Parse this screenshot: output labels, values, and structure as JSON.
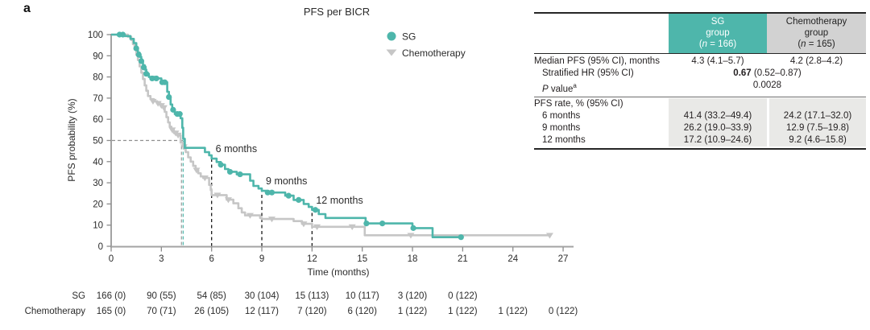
{
  "panel_label": "a",
  "chart_data": {
    "type": "line",
    "subtype": "kaplan-meier-step",
    "title": "PFS per BICR",
    "xlabel": "Time (months)",
    "ylabel": "PFS probability (%)",
    "xlim": [
      0,
      27
    ],
    "ylim": [
      0,
      100
    ],
    "xticks": [
      0,
      3,
      6,
      9,
      12,
      15,
      18,
      21,
      24,
      27
    ],
    "yticks": [
      0,
      10,
      20,
      30,
      40,
      50,
      60,
      70,
      80,
      90,
      100
    ],
    "grid": false,
    "legend_position": "upper right inside",
    "legend": [
      {
        "label": "SG",
        "marker": "circle",
        "color": "#4eb6ab"
      },
      {
        "label": "Chemotherapy",
        "marker": "triangle-down",
        "color": "#c6c6c6"
      }
    ],
    "medians_months": {
      "sg": 4.3,
      "chemotherapy": 4.2,
      "reference_probability_pct": 50
    },
    "dashed_timepoints": [
      {
        "label": "6 months",
        "month": 6,
        "top_pct": 41.4
      },
      {
        "label": "9 months",
        "month": 9,
        "top_pct": 26.2
      },
      {
        "label": "12 months",
        "month": 12,
        "top_pct": 17.2
      }
    ],
    "series": [
      {
        "name": "Chemotherapy",
        "color": "#c6c6c6",
        "marker": "triangle-down",
        "steps": [
          [
            0,
            100
          ],
          [
            1.0,
            99
          ],
          [
            1.2,
            97.5
          ],
          [
            1.3,
            95.5
          ],
          [
            1.4,
            93
          ],
          [
            1.5,
            90.5
          ],
          [
            1.6,
            88
          ],
          [
            1.7,
            85
          ],
          [
            1.8,
            82
          ],
          [
            1.9,
            79
          ],
          [
            2.0,
            76
          ],
          [
            2.1,
            73.5
          ],
          [
            2.2,
            71
          ],
          [
            2.35,
            69.5
          ],
          [
            2.55,
            68.5
          ],
          [
            2.75,
            67.5
          ],
          [
            2.95,
            66.5
          ],
          [
            3.1,
            65.5
          ],
          [
            3.2,
            63.5
          ],
          [
            3.3,
            61
          ],
          [
            3.4,
            58.5
          ],
          [
            3.5,
            56.5
          ],
          [
            3.6,
            55
          ],
          [
            3.75,
            53.5
          ],
          [
            3.95,
            52.5
          ],
          [
            4.15,
            49
          ],
          [
            4.3,
            47
          ],
          [
            4.45,
            44.5
          ],
          [
            4.6,
            42
          ],
          [
            4.75,
            40
          ],
          [
            4.9,
            38
          ],
          [
            5.05,
            36
          ],
          [
            5.2,
            34.5
          ],
          [
            5.35,
            33
          ],
          [
            5.5,
            32.3
          ],
          [
            5.85,
            29
          ],
          [
            5.95,
            26.5
          ],
          [
            6.0,
            24.2
          ],
          [
            6.9,
            22
          ],
          [
            7.3,
            20.3
          ],
          [
            7.6,
            18
          ],
          [
            7.8,
            16
          ],
          [
            8.0,
            14.6
          ],
          [
            8.9,
            13.4
          ],
          [
            9.0,
            12.9
          ],
          [
            10.9,
            11.9
          ],
          [
            11.4,
            10.6
          ],
          [
            12.0,
            9.2
          ],
          [
            15.15,
            5.2
          ],
          [
            26.2,
            5.2
          ]
        ],
        "censor_marks": [
          [
            2.5,
            68.5
          ],
          [
            2.8,
            67.5
          ],
          [
            3.0,
            66.5
          ],
          [
            3.15,
            65.5
          ],
          [
            3.65,
            55
          ],
          [
            3.85,
            53.5
          ],
          [
            4.0,
            52.5
          ],
          [
            4.35,
            47
          ],
          [
            5.1,
            36
          ],
          [
            5.6,
            32.3
          ],
          [
            6.35,
            24.2
          ],
          [
            7.0,
            22
          ],
          [
            8.3,
            14.6
          ],
          [
            9.6,
            12.9
          ],
          [
            11.5,
            10.6
          ],
          [
            12.3,
            9.2
          ],
          [
            14.4,
            9.2
          ],
          [
            17.9,
            5.2
          ],
          [
            26.2,
            5.2
          ]
        ]
      },
      {
        "name": "SG",
        "color": "#4eb6ab",
        "marker": "circle",
        "steps": [
          [
            0,
            100
          ],
          [
            0.8,
            99.3
          ],
          [
            1.15,
            98
          ],
          [
            1.35,
            96
          ],
          [
            1.5,
            93.5
          ],
          [
            1.6,
            91.5
          ],
          [
            1.7,
            89.5
          ],
          [
            1.8,
            87.5
          ],
          [
            1.9,
            85.5
          ],
          [
            2.0,
            83.5
          ],
          [
            2.1,
            81.5
          ],
          [
            2.25,
            80
          ],
          [
            2.6,
            79.3
          ],
          [
            3.0,
            77.5
          ],
          [
            3.35,
            73
          ],
          [
            3.45,
            70.5
          ],
          [
            3.55,
            67
          ],
          [
            3.65,
            64.5
          ],
          [
            3.8,
            62.5
          ],
          [
            4.15,
            60.5
          ],
          [
            4.25,
            56
          ],
          [
            4.3,
            50.8
          ],
          [
            4.4,
            46.5
          ],
          [
            5.6,
            44.5
          ],
          [
            5.85,
            43
          ],
          [
            6.0,
            41.4
          ],
          [
            6.3,
            39.8
          ],
          [
            6.55,
            38.5
          ],
          [
            6.8,
            36.5
          ],
          [
            7.0,
            35.2
          ],
          [
            7.5,
            34
          ],
          [
            8.3,
            31
          ],
          [
            8.5,
            28.5
          ],
          [
            8.8,
            27.3
          ],
          [
            9.0,
            26.2
          ],
          [
            9.3,
            25.4
          ],
          [
            10.4,
            23.9
          ],
          [
            10.9,
            21.9
          ],
          [
            11.5,
            20
          ],
          [
            11.8,
            18.6
          ],
          [
            12.0,
            17.2
          ],
          [
            12.4,
            15.2
          ],
          [
            12.8,
            13.4
          ],
          [
            15.2,
            10.8
          ],
          [
            18.0,
            8.6
          ],
          [
            19.2,
            4.3
          ],
          [
            21.0,
            4.3
          ]
        ],
        "censor_marks": [
          [
            0.5,
            100
          ],
          [
            0.7,
            100
          ],
          [
            1.5,
            93.5
          ],
          [
            1.65,
            90.5
          ],
          [
            1.8,
            87.5
          ],
          [
            1.95,
            84.5
          ],
          [
            2.1,
            81.5
          ],
          [
            2.45,
            79.3
          ],
          [
            2.7,
            79.3
          ],
          [
            3.05,
            77.5
          ],
          [
            3.2,
            77.5
          ],
          [
            3.45,
            70.5
          ],
          [
            3.7,
            64.5
          ],
          [
            3.95,
            62.5
          ],
          [
            4.1,
            62.5
          ],
          [
            6.55,
            38.5
          ],
          [
            7.1,
            35.2
          ],
          [
            7.7,
            34
          ],
          [
            9.35,
            25.4
          ],
          [
            9.6,
            25.4
          ],
          [
            10.6,
            23.9
          ],
          [
            11.2,
            21.9
          ],
          [
            12.2,
            17.2
          ],
          [
            15.25,
            10.8
          ],
          [
            16.2,
            10.8
          ],
          [
            18.05,
            8.6
          ],
          [
            20.9,
            4.3
          ]
        ]
      }
    ],
    "number_at_risk": {
      "rows": [
        {
          "label": "SG",
          "values": [
            "166 (0)",
            "90 (55)",
            "54 (85)",
            "30 (104)",
            "15 (113)",
            "10 (117)",
            "3 (120)",
            "0 (122)"
          ]
        },
        {
          "label": "Chemotherapy",
          "values": [
            "165 (0)",
            "70 (71)",
            "26 (105)",
            "12 (117)",
            "7 (120)",
            "6 (120)",
            "1 (122)",
            "1 (122)",
            "1 (122)",
            "0 (122)"
          ]
        }
      ]
    }
  },
  "stats_table": {
    "header": {
      "sg": {
        "line1": "SG",
        "line2": "group",
        "n_pre": "(",
        "n": "n",
        "n_post": " = 166)"
      },
      "chemo": {
        "line1": "Chemotherapy",
        "line2": "group",
        "n_pre": "(",
        "n": "n",
        "n_post": " = 165)"
      }
    },
    "median_row": {
      "label": "Median PFS (95% CI), months",
      "sg": "4.3 (4.1–5.7)",
      "chemo": "4.2 (2.8–4.2)"
    },
    "hr_row": {
      "label": "Stratified HR (95% CI)",
      "value_bold": "0.67",
      "value_rest": " (0.52–0.87)"
    },
    "pvalue_row": {
      "label_p": "P",
      "label_rest": " value",
      "sup": "a",
      "value": "0.0028"
    },
    "rate_header": {
      "label": "PFS rate, % (95% CI)"
    },
    "rate_rows": [
      {
        "label": "6 months",
        "sg": "41.4 (33.2–49.4)",
        "chemo": "24.2 (17.1–32.0)"
      },
      {
        "label": "9 months",
        "sg": "26.2 (19.0–33.9)",
        "chemo": "12.9 (7.5–19.8)"
      },
      {
        "label": "12 months",
        "sg": "17.2 (10.9–24.6)",
        "chemo": "9.2 (4.6–15.8)"
      }
    ]
  }
}
